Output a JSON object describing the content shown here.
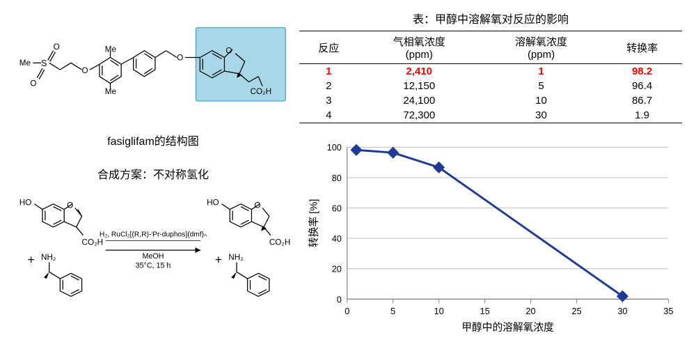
{
  "structure_caption": "fasiglifam的结构图",
  "scheme_title": "合成方案：不对称氢化",
  "table": {
    "title": "表：甲醇中溶解氧对反应的影响",
    "columns": [
      "反应",
      "气相氧浓度\n(ppm)",
      "溶解氧浓度\n(ppm)",
      "转换率"
    ],
    "rows": [
      {
        "cells": [
          "1",
          "2,410",
          "1",
          "98.2"
        ],
        "highlight": true
      },
      {
        "cells": [
          "2",
          "12,150",
          "5",
          "96.4"
        ],
        "highlight": false
      },
      {
        "cells": [
          "3",
          "24,100",
          "10",
          "86.7"
        ],
        "highlight": false
      },
      {
        "cells": [
          "4",
          "72,300",
          "30",
          "1.9"
        ],
        "highlight": false
      }
    ]
  },
  "chart": {
    "type": "line",
    "x_values": [
      1,
      5,
      10,
      30
    ],
    "y_values": [
      98.2,
      96.4,
      86.7,
      1.9
    ],
    "xlim": [
      0,
      35
    ],
    "ylim": [
      0,
      100
    ],
    "xtick_step": 5,
    "ytick_step": 20,
    "line_color": "#1f3a93",
    "marker_color": "#1f3a93",
    "marker_shape": "diamond",
    "marker_size": 8,
    "line_width": 3,
    "grid_color": "#bfbfbf",
    "axis_color": "#808080",
    "background_color": "#ffffff",
    "ylabel": "转换率  [%]",
    "xlabel": "甲醇中的溶解氧浓度",
    "tick_fontsize": 13,
    "label_fontsize": 15
  },
  "scheme": {
    "reagent_top": "H₂, RuCl₂[(R,R)-ⁱPr-duphos](dmf)ₙ",
    "reagent_mid": "MeOH",
    "reagent_bot": "35°C, 15 h",
    "labels": {
      "HO": "HO",
      "O": "O",
      "CO2H": "CO₂H",
      "NH2": "NH₂",
      "Me": "Me",
      "MeS": "Me"
    }
  }
}
